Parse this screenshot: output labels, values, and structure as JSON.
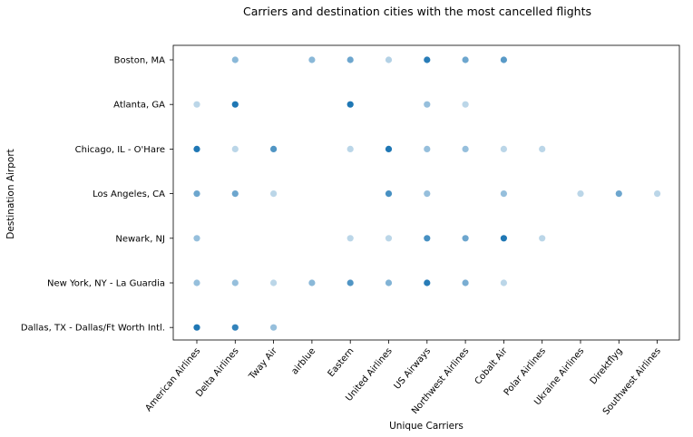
{
  "chart_data": {
    "type": "scatter",
    "title": "Carriers and destination cities with the most cancelled flights",
    "xlabel": "Unique Carriers",
    "ylabel": "Destination Airport",
    "categories_x": [
      "American Airlines",
      "Delta Airlines",
      "Tway Air",
      "airblue",
      "Eastern",
      "United Airlines",
      "US Airways",
      "Northwest Airlines",
      "Cobalt Air",
      "Polar Airlines",
      "Ukraine Airlines",
      "Direktflyg",
      "Southwest Airlines"
    ],
    "categories_y": [
      "Boston, MA",
      "Atlanta, GA",
      "Chicago, IL - O'Hare",
      "Los Angeles, CA",
      "Newark, NJ",
      "New York, NY - La Guardia",
      "Dallas, TX - Dallas/Ft Worth Intl."
    ],
    "marker_color": "#1f77b4",
    "grid": false,
    "points": [
      {
        "x": "Delta Airlines",
        "y": "Boston, MA",
        "intensity": 0.45
      },
      {
        "x": "airblue",
        "y": "Boston, MA",
        "intensity": 0.45
      },
      {
        "x": "Eastern",
        "y": "Boston, MA",
        "intensity": 0.6
      },
      {
        "x": "United Airlines",
        "y": "Boston, MA",
        "intensity": 0.25
      },
      {
        "x": "US Airways",
        "y": "Boston, MA",
        "intensity": 0.95
      },
      {
        "x": "Northwest Airlines",
        "y": "Boston, MA",
        "intensity": 0.6
      },
      {
        "x": "Cobalt Air",
        "y": "Boston, MA",
        "intensity": 0.7
      },
      {
        "x": "American Airlines",
        "y": "Atlanta, GA",
        "intensity": 0.2
      },
      {
        "x": "Delta Airlines",
        "y": "Atlanta, GA",
        "intensity": 1.0
      },
      {
        "x": "Eastern",
        "y": "Atlanta, GA",
        "intensity": 1.0
      },
      {
        "x": "US Airways",
        "y": "Atlanta, GA",
        "intensity": 0.4
      },
      {
        "x": "Northwest Airlines",
        "y": "Atlanta, GA",
        "intensity": 0.2
      },
      {
        "x": "American Airlines",
        "y": "Chicago, IL - O'Hare",
        "intensity": 1.0
      },
      {
        "x": "Delta Airlines",
        "y": "Chicago, IL - O'Hare",
        "intensity": 0.2
      },
      {
        "x": "Tway Air",
        "y": "Chicago, IL - O'Hare",
        "intensity": 0.75
      },
      {
        "x": "Eastern",
        "y": "Chicago, IL - O'Hare",
        "intensity": 0.2
      },
      {
        "x": "United Airlines",
        "y": "Chicago, IL - O'Hare",
        "intensity": 1.0
      },
      {
        "x": "US Airways",
        "y": "Chicago, IL - O'Hare",
        "intensity": 0.4
      },
      {
        "x": "Northwest Airlines",
        "y": "Chicago, IL - O'Hare",
        "intensity": 0.4
      },
      {
        "x": "Cobalt Air",
        "y": "Chicago, IL - O'Hare",
        "intensity": 0.2
      },
      {
        "x": "Polar Airlines",
        "y": "Chicago, IL - O'Hare",
        "intensity": 0.2
      },
      {
        "x": "American Airlines",
        "y": "Los Angeles, CA",
        "intensity": 0.6
      },
      {
        "x": "Delta Airlines",
        "y": "Los Angeles, CA",
        "intensity": 0.6
      },
      {
        "x": "Tway Air",
        "y": "Los Angeles, CA",
        "intensity": 0.2
      },
      {
        "x": "United Airlines",
        "y": "Los Angeles, CA",
        "intensity": 0.8
      },
      {
        "x": "US Airways",
        "y": "Los Angeles, CA",
        "intensity": 0.4
      },
      {
        "x": "Cobalt Air",
        "y": "Los Angeles, CA",
        "intensity": 0.4
      },
      {
        "x": "Ukraine Airlines",
        "y": "Los Angeles, CA",
        "intensity": 0.2
      },
      {
        "x": "Direktflyg",
        "y": "Los Angeles, CA",
        "intensity": 0.6
      },
      {
        "x": "Southwest Airlines",
        "y": "Los Angeles, CA",
        "intensity": 0.2
      },
      {
        "x": "American Airlines",
        "y": "Newark, NJ",
        "intensity": 0.4
      },
      {
        "x": "Eastern",
        "y": "Newark, NJ",
        "intensity": 0.2
      },
      {
        "x": "United Airlines",
        "y": "Newark, NJ",
        "intensity": 0.2
      },
      {
        "x": "US Airways",
        "y": "Newark, NJ",
        "intensity": 0.8
      },
      {
        "x": "Northwest Airlines",
        "y": "Newark, NJ",
        "intensity": 0.6
      },
      {
        "x": "Cobalt Air",
        "y": "Newark, NJ",
        "intensity": 1.0
      },
      {
        "x": "Polar Airlines",
        "y": "Newark, NJ",
        "intensity": 0.2
      },
      {
        "x": "American Airlines",
        "y": "New York, NY - La Guardia",
        "intensity": 0.4
      },
      {
        "x": "Delta Airlines",
        "y": "New York, NY - La Guardia",
        "intensity": 0.4
      },
      {
        "x": "Tway Air",
        "y": "New York, NY - La Guardia",
        "intensity": 0.2
      },
      {
        "x": "airblue",
        "y": "New York, NY - La Guardia",
        "intensity": 0.45
      },
      {
        "x": "Eastern",
        "y": "New York, NY - La Guardia",
        "intensity": 0.75
      },
      {
        "x": "United Airlines",
        "y": "New York, NY - La Guardia",
        "intensity": 0.5
      },
      {
        "x": "US Airways",
        "y": "New York, NY - La Guardia",
        "intensity": 0.95
      },
      {
        "x": "Northwest Airlines",
        "y": "New York, NY - La Guardia",
        "intensity": 0.55
      },
      {
        "x": "Cobalt Air",
        "y": "New York, NY - La Guardia",
        "intensity": 0.2
      },
      {
        "x": "American Airlines",
        "y": "Dallas, TX - Dallas/Ft Worth Intl.",
        "intensity": 1.0
      },
      {
        "x": "Delta Airlines",
        "y": "Dallas, TX - Dallas/Ft Worth Intl.",
        "intensity": 0.9
      },
      {
        "x": "Tway Air",
        "y": "Dallas, TX - Dallas/Ft Worth Intl.",
        "intensity": 0.4
      }
    ]
  }
}
